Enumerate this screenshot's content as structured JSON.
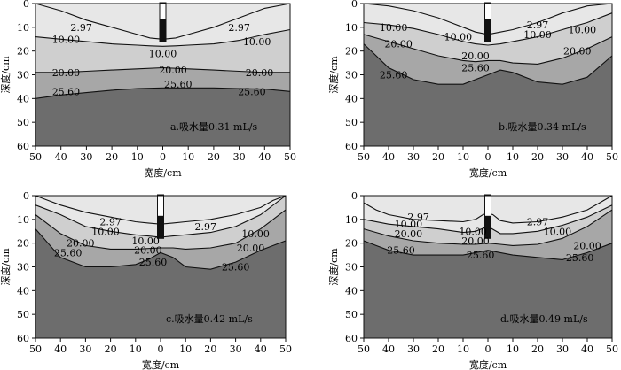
{
  "chart_data": [
    {
      "id": "a",
      "type": "area",
      "caption": "a.吸水量0.31 mL/s",
      "xlabel": "宽度/cm",
      "ylabel": "深度/cm",
      "xticks": [
        50,
        40,
        30,
        20,
        10,
        0,
        10,
        20,
        30,
        40,
        50
      ],
      "yticks": [
        0,
        10,
        20,
        30,
        40,
        50,
        60
      ],
      "xlim": [
        -50,
        50
      ],
      "ylim": [
        0,
        60
      ],
      "emitter_depth": 16,
      "contours": [
        {
          "label": "2.97",
          "x": [
            -50,
            -40,
            -30,
            -20,
            -10,
            -5,
            0,
            5,
            10,
            20,
            30,
            40,
            50
          ],
          "depth": [
            0,
            3,
            7,
            10,
            13,
            14.5,
            15,
            14.5,
            13,
            10,
            6,
            2,
            0
          ]
        },
        {
          "label": "10.00",
          "x": [
            -50,
            -40,
            -30,
            -20,
            -10,
            -5,
            0,
            5,
            10,
            20,
            30,
            40,
            50
          ],
          "depth": [
            14,
            15,
            16,
            17,
            17.5,
            17.8,
            18,
            17.8,
            17.5,
            17,
            15.5,
            13,
            11
          ]
        },
        {
          "label": "20.00",
          "x": [
            -50,
            -40,
            -30,
            -20,
            -10,
            0,
            10,
            20,
            30,
            40,
            50
          ],
          "depth": [
            29,
            29,
            28.5,
            28,
            27.5,
            27,
            27.5,
            28,
            28.5,
            29,
            29
          ]
        },
        {
          "label": "25.60",
          "x": [
            -50,
            -40,
            -30,
            -20,
            -10,
            0,
            10,
            20,
            30,
            40,
            50
          ],
          "depth": [
            40,
            38.5,
            37.5,
            36.5,
            35.8,
            35.5,
            35.5,
            35.5,
            35.8,
            36,
            37
          ]
        }
      ],
      "labels": [
        {
          "text": "2.97",
          "x": -32,
          "depth": 10
        },
        {
          "text": "2.97",
          "x": 30,
          "depth": 10
        },
        {
          "text": "10.00",
          "x": -38,
          "depth": 15
        },
        {
          "text": "10.00",
          "x": 0,
          "depth": 21
        },
        {
          "text": "10.00",
          "x": 37,
          "depth": 16
        },
        {
          "text": "20.00",
          "x": -38,
          "depth": 29
        },
        {
          "text": "20.00",
          "x": 4,
          "depth": 28
        },
        {
          "text": "20.00",
          "x": 38,
          "depth": 29
        },
        {
          "text": "25.60",
          "x": -38,
          "depth": 37
        },
        {
          "text": "25.60",
          "x": 6,
          "depth": 34
        },
        {
          "text": "25.60",
          "x": 35,
          "depth": 37
        }
      ]
    },
    {
      "id": "b",
      "type": "area",
      "caption": "b.吸水量0.34 mL/s",
      "xlabel": "宽度/cm",
      "ylabel": "深度/cm",
      "xticks": [
        50,
        40,
        30,
        20,
        10,
        0,
        10,
        20,
        30,
        40,
        50
      ],
      "yticks": [
        0,
        10,
        20,
        30,
        40,
        50,
        60
      ],
      "xlim": [
        -50,
        50
      ],
      "ylim": [
        0,
        60
      ],
      "emitter_depth": 16,
      "contours": [
        {
          "label": "2.97",
          "x": [
            -50,
            -40,
            -30,
            -20,
            -10,
            -5,
            0,
            5,
            10,
            20,
            30,
            40,
            50
          ],
          "depth": [
            0,
            1,
            3,
            6,
            10,
            12,
            13,
            12,
            11,
            8,
            4,
            1,
            0
          ]
        },
        {
          "label": "10.00",
          "x": [
            -50,
            -40,
            -30,
            -20,
            -10,
            -5,
            0,
            5,
            10,
            20,
            30,
            40,
            50
          ],
          "depth": [
            8,
            9,
            10.5,
            13,
            16,
            17,
            17.5,
            17,
            16,
            14,
            11,
            8,
            4
          ]
        },
        {
          "label": "20.00",
          "x": [
            -50,
            -40,
            -30,
            -20,
            -10,
            -5,
            0,
            5,
            10,
            20,
            30,
            40,
            50
          ],
          "depth": [
            13,
            16,
            19,
            22,
            24,
            24.5,
            24,
            24,
            25,
            25.5,
            23,
            19,
            14
          ]
        },
        {
          "label": "25.60",
          "x": [
            -50,
            -45,
            -40,
            -30,
            -20,
            -10,
            0,
            5,
            10,
            20,
            30,
            40,
            50
          ],
          "depth": [
            17,
            22,
            27,
            32,
            34,
            34,
            30,
            28,
            29,
            33,
            34,
            31,
            22
          ]
        }
      ],
      "labels": [
        {
          "text": "10.00",
          "x": -38,
          "depth": 10
        },
        {
          "text": "10.00",
          "x": -12,
          "depth": 14
        },
        {
          "text": "10.00",
          "x": 20,
          "depth": 13
        },
        {
          "text": "10.00",
          "x": 38,
          "depth": 11
        },
        {
          "text": "2.97",
          "x": 20,
          "depth": 9
        },
        {
          "text": "20.00",
          "x": -36,
          "depth": 17
        },
        {
          "text": "20.00",
          "x": -5,
          "depth": 22
        },
        {
          "text": "20.00",
          "x": 36,
          "depth": 20
        },
        {
          "text": "25.60",
          "x": -38,
          "depth": 30
        },
        {
          "text": "25.60",
          "x": -5,
          "depth": 27
        }
      ]
    },
    {
      "id": "c",
      "type": "area",
      "caption": "c.吸水量0.42 mL/s",
      "xlabel": "宽度/cm",
      "ylabel": "深度/cm",
      "xticks": [
        50,
        40,
        30,
        20,
        10,
        0,
        10,
        20,
        30,
        40,
        50
      ],
      "yticks": [
        0,
        10,
        20,
        30,
        40,
        50,
        60
      ],
      "xlim": [
        -50,
        50
      ],
      "ylim": [
        0,
        60
      ],
      "emitter_depth": 18,
      "contours": [
        {
          "label": "2.97",
          "x": [
            -50,
            -45,
            -40,
            -30,
            -20,
            -10,
            -5,
            0,
            5,
            10,
            20,
            30,
            40,
            45,
            50
          ],
          "depth": [
            0,
            2,
            4,
            7,
            9,
            11,
            11.5,
            12,
            11.5,
            11,
            10,
            8,
            5,
            2,
            0
          ]
        },
        {
          "label": "10.00",
          "x": [
            -50,
            -40,
            -30,
            -20,
            -10,
            -5,
            0,
            5,
            10,
            20,
            30,
            40,
            50
          ],
          "depth": [
            4,
            8,
            13,
            15,
            16.5,
            17,
            17.5,
            17,
            16.5,
            15.5,
            13,
            8,
            0
          ]
        },
        {
          "label": "20.00",
          "x": [
            -50,
            -40,
            -30,
            -20,
            -10,
            0,
            5,
            10,
            20,
            30,
            40,
            50
          ],
          "depth": [
            8,
            16,
            21,
            22.5,
            22.5,
            22,
            22,
            22.5,
            22,
            20,
            14,
            6
          ]
        },
        {
          "label": "25.60",
          "x": [
            -50,
            -45,
            -40,
            -30,
            -20,
            -10,
            -5,
            0,
            5,
            10,
            20,
            30,
            40,
            50
          ],
          "depth": [
            14,
            20,
            26,
            30,
            30,
            29,
            27,
            24,
            26,
            30,
            31,
            28,
            23,
            19
          ]
        }
      ],
      "labels": [
        {
          "text": "2.97",
          "x": -20,
          "depth": 11
        },
        {
          "text": "2.97",
          "x": 18,
          "depth": 13
        },
        {
          "text": "10.00",
          "x": -22,
          "depth": 15
        },
        {
          "text": "10.00",
          "x": -6,
          "depth": 19
        },
        {
          "text": "10.00",
          "x": 38,
          "depth": 16
        },
        {
          "text": "20.00",
          "x": -32,
          "depth": 20
        },
        {
          "text": "20.00",
          "x": -5,
          "depth": 23
        },
        {
          "text": "20.00",
          "x": 36,
          "depth": 22
        },
        {
          "text": "25.60",
          "x": -37,
          "depth": 24
        },
        {
          "text": "25.60",
          "x": -3,
          "depth": 28
        },
        {
          "text": "25.60",
          "x": 30,
          "depth": 30
        }
      ]
    },
    {
      "id": "d",
      "type": "area",
      "caption": "d.吸水量0.49 mL/s",
      "xlabel": "宽度/cm",
      "ylabel": "深度/cm",
      "xticks": [
        50,
        40,
        30,
        20,
        10,
        0,
        10,
        20,
        30,
        40,
        50
      ],
      "yticks": [
        0,
        10,
        20,
        30,
        40,
        50,
        60
      ],
      "xlim": [
        -50,
        50
      ],
      "ylim": [
        0,
        60
      ],
      "emitter_depth": 18,
      "contours": [
        {
          "label": "2.97",
          "x": [
            -50,
            -45,
            -40,
            -30,
            -20,
            -10,
            -5,
            -2,
            0,
            2,
            5,
            10,
            20,
            30,
            40,
            45,
            50
          ],
          "depth": [
            3,
            6,
            8,
            10,
            10.5,
            11,
            10,
            8,
            7.5,
            8,
            10.5,
            11.5,
            11,
            9,
            6,
            3,
            0
          ]
        },
        {
          "label": "10.00",
          "x": [
            -50,
            -40,
            -30,
            -20,
            -10,
            -5,
            0,
            5,
            10,
            20,
            30,
            40,
            50
          ],
          "depth": [
            10,
            12,
            13,
            14,
            15.5,
            15,
            13,
            16,
            16,
            15,
            12.5,
            9,
            4
          ]
        },
        {
          "label": "20.00",
          "x": [
            -50,
            -40,
            -30,
            -20,
            -10,
            -5,
            0,
            5,
            10,
            20,
            30,
            40,
            50
          ],
          "depth": [
            14,
            17,
            19,
            20,
            20.5,
            20.5,
            20,
            20.5,
            21,
            20.5,
            18,
            13,
            6
          ]
        },
        {
          "label": "25.60",
          "x": [
            -50,
            -45,
            -40,
            -30,
            -20,
            -10,
            -5,
            0,
            5,
            10,
            20,
            30,
            40,
            50
          ],
          "depth": [
            19,
            21,
            23,
            25,
            25,
            25,
            24,
            23,
            24,
            25,
            26,
            27,
            24,
            20
          ]
        }
      ],
      "labels": [
        {
          "text": "2.97",
          "x": -28,
          "depth": 9
        },
        {
          "text": "2.97",
          "x": 20,
          "depth": 11
        },
        {
          "text": "10.00",
          "x": -32,
          "depth": 12
        },
        {
          "text": "10.00",
          "x": -6,
          "depth": 15
        },
        {
          "text": "10.00",
          "x": 28,
          "depth": 15
        },
        {
          "text": "20.00",
          "x": -32,
          "depth": 16
        },
        {
          "text": "20.00",
          "x": -5,
          "depth": 19
        },
        {
          "text": "20.00",
          "x": 40,
          "depth": 21
        },
        {
          "text": "25.60",
          "x": -35,
          "depth": 23
        },
        {
          "text": "25.60",
          "x": -3,
          "depth": 25
        },
        {
          "text": "25.60",
          "x": 37,
          "depth": 26
        }
      ]
    }
  ],
  "colors": {
    "band1": "#e7e7e7",
    "band2": "#cfcfcf",
    "band3": "#a7a7a7",
    "band4": "#6d6d6d",
    "line": "#111111",
    "emitter": "#111111",
    "pipe": "#ffffff"
  }
}
